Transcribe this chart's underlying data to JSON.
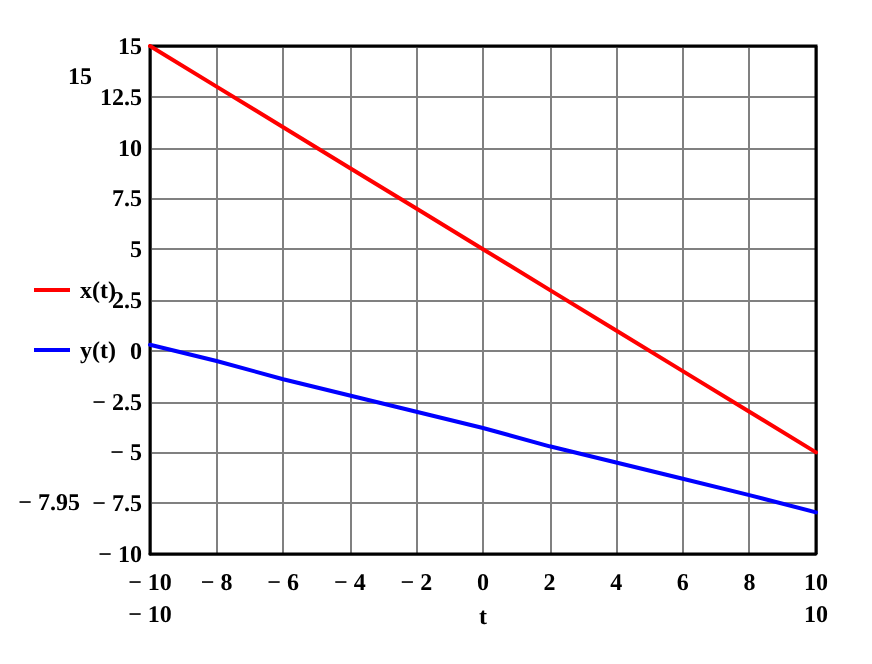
{
  "chart_data": {
    "type": "line",
    "xlabel": "t",
    "x": [
      -10,
      -8,
      -6,
      -4,
      -2,
      0,
      2,
      4,
      6,
      8,
      10
    ],
    "series": [
      {
        "name": "x(t)",
        "color": "#ff0000",
        "values": [
          15,
          13,
          11,
          9,
          7,
          5,
          3,
          1,
          -1,
          -3,
          -5
        ]
      },
      {
        "name": "y(t)",
        "color": "#0000ff",
        "values": [
          0.3,
          -0.5,
          -1.4,
          -2.2,
          -3.0,
          -3.8,
          -4.7,
          -5.5,
          -6.3,
          -7.1,
          -7.95
        ]
      }
    ],
    "xlim": [
      -10,
      10
    ],
    "xticks": [
      -10,
      -8,
      -6,
      -4,
      -2,
      0,
      2,
      4,
      6,
      8,
      10
    ],
    "ylim": [
      -10,
      15
    ],
    "yticks": [
      -10,
      -7.5,
      -5,
      -2.5,
      0,
      2.5,
      5,
      7.5,
      10,
      12.5,
      15
    ],
    "grid": true,
    "legend": "left",
    "marker": "none",
    "line_style": "solid",
    "annotations": [
      "15",
      "− 7.95",
      "− 10",
      "10"
    ]
  }
}
